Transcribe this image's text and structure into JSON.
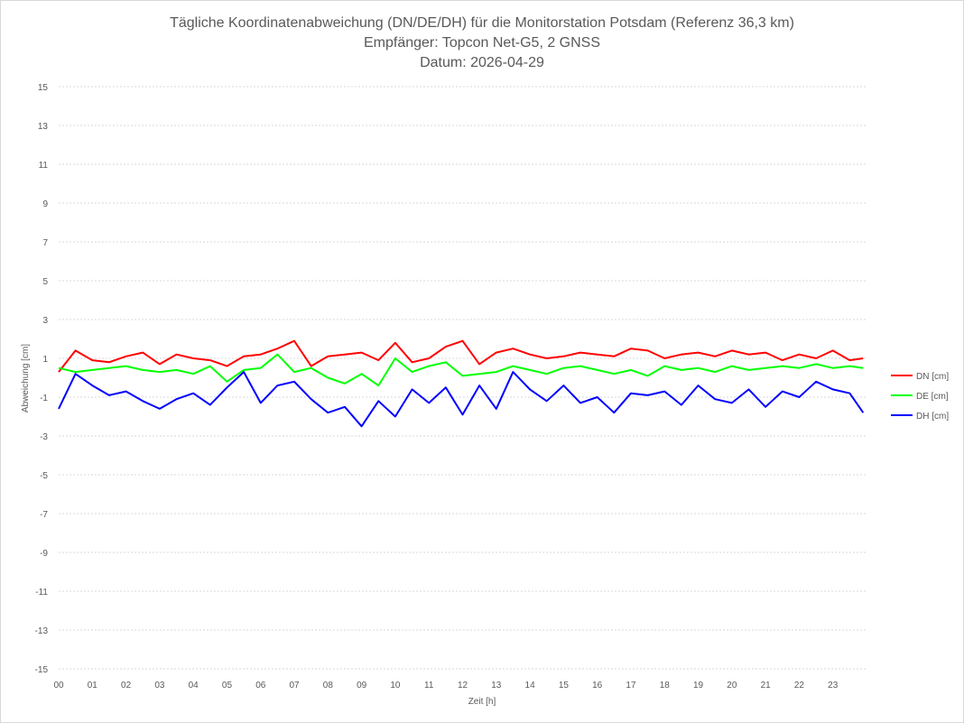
{
  "chart_data": {
    "type": "line",
    "title_lines": [
      "Tägliche Koordinatenabweichung (DN/DE/DH) für die Monitorstation Potsdam (Referenz 36,3 km)",
      "Empfänger: Topcon Net-G5, 2 GNSS",
      "Datum: 2026-04-29"
    ],
    "xlabel": "Zeit [h]",
    "ylabel": "Abweichung [cm]",
    "xlim": [
      0,
      24
    ],
    "ylim": [
      -15,
      15
    ],
    "x_ticks": [
      "00",
      "01",
      "02",
      "03",
      "04",
      "05",
      "06",
      "07",
      "08",
      "09",
      "10",
      "11",
      "12",
      "13",
      "14",
      "15",
      "16",
      "17",
      "18",
      "19",
      "20",
      "21",
      "22",
      "23"
    ],
    "y_ticks": [
      15,
      13,
      11,
      9,
      7,
      5,
      3,
      1,
      -1,
      -3,
      -5,
      -7,
      -9,
      -11,
      -13,
      -15
    ],
    "grid": "horizontal-dotted",
    "legend_position": "right",
    "x": [
      0,
      0.5,
      1,
      1.5,
      2,
      2.5,
      3,
      3.5,
      4,
      4.5,
      5,
      5.5,
      6,
      6.5,
      7,
      7.5,
      8,
      8.5,
      9,
      9.5,
      10,
      10.5,
      11,
      11.5,
      12,
      12.5,
      13,
      13.5,
      14,
      14.5,
      15,
      15.5,
      16,
      16.5,
      17,
      17.5,
      18,
      18.5,
      19,
      19.5,
      20,
      20.5,
      21,
      21.5,
      22,
      22.5,
      23,
      23.5,
      23.9
    ],
    "series": [
      {
        "name": "DN [cm]",
        "color": "#ff0000",
        "values": [
          0.3,
          1.4,
          0.9,
          0.8,
          1.1,
          1.3,
          0.7,
          1.2,
          1.0,
          0.9,
          0.6,
          1.1,
          1.2,
          1.5,
          1.9,
          0.6,
          1.1,
          1.2,
          1.3,
          0.9,
          1.8,
          0.8,
          1.0,
          1.6,
          1.9,
          0.7,
          1.3,
          1.5,
          1.2,
          1.0,
          1.1,
          1.3,
          1.2,
          1.1,
          1.5,
          1.4,
          1.0,
          1.2,
          1.3,
          1.1,
          1.4,
          1.2,
          1.3,
          0.9,
          1.2,
          1.0,
          1.4,
          0.9,
          1.0
        ]
      },
      {
        "name": "DE [cm]",
        "color": "#00ff00",
        "values": [
          0.5,
          0.3,
          0.4,
          0.5,
          0.6,
          0.4,
          0.3,
          0.4,
          0.2,
          0.6,
          -0.2,
          0.4,
          0.5,
          1.2,
          0.3,
          0.5,
          0.0,
          -0.3,
          0.2,
          -0.4,
          1.0,
          0.3,
          0.6,
          0.8,
          0.1,
          0.2,
          0.3,
          0.6,
          0.4,
          0.2,
          0.5,
          0.6,
          0.4,
          0.2,
          0.4,
          0.1,
          0.6,
          0.4,
          0.5,
          0.3,
          0.6,
          0.4,
          0.5,
          0.6,
          0.5,
          0.7,
          0.5,
          0.6,
          0.5
        ]
      },
      {
        "name": "DH [cm]",
        "color": "#0000ff",
        "values": [
          -1.6,
          0.2,
          -0.4,
          -0.9,
          -0.7,
          -1.2,
          -1.6,
          -1.1,
          -0.8,
          -1.4,
          -0.5,
          0.3,
          -1.3,
          -0.4,
          -0.2,
          -1.1,
          -1.8,
          -1.5,
          -2.5,
          -1.2,
          -2.0,
          -0.6,
          -1.3,
          -0.5,
          -1.9,
          -0.4,
          -1.6,
          0.3,
          -0.6,
          -1.2,
          -0.4,
          -1.3,
          -1.0,
          -1.8,
          -0.8,
          -0.9,
          -0.7,
          -1.4,
          -0.4,
          -1.1,
          -1.3,
          -0.6,
          -1.5,
          -0.7,
          -1.0,
          -0.2,
          -0.6,
          -0.8,
          -1.8
        ]
      }
    ]
  }
}
